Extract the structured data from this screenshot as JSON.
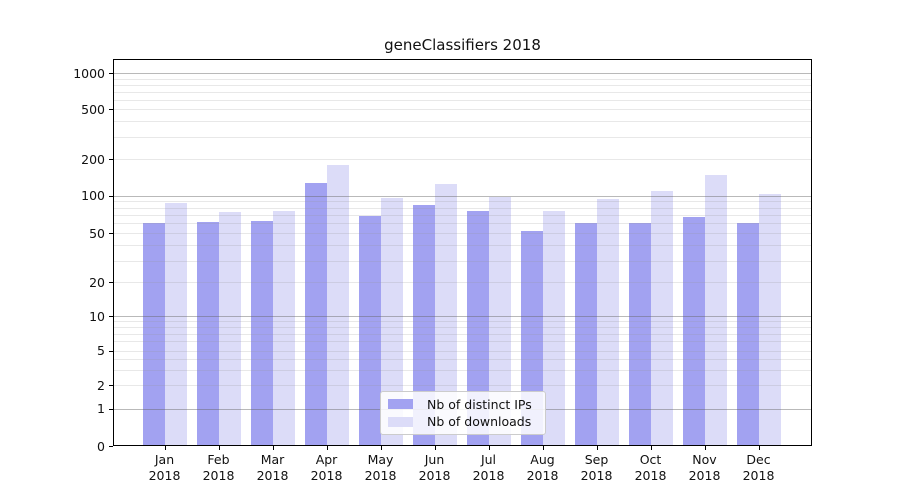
{
  "chart_data": {
    "type": "bar",
    "title": "geneClassifiers 2018",
    "categories": [
      "Jan 2018",
      "Feb 2018",
      "Mar 2018",
      "Apr 2018",
      "May 2018",
      "Jun 2018",
      "Jul 2018",
      "Aug 2018",
      "Sep 2018",
      "Oct 2018",
      "Nov 2018",
      "Dec 2018"
    ],
    "series": [
      {
        "name": "Nb of distinct IPs",
        "color": "#a2a2f1",
        "values": [
          61,
          62,
          63,
          126,
          69,
          84,
          75,
          52,
          61,
          60,
          67,
          60
        ]
      },
      {
        "name": "Nb of downloads",
        "color": "#dcdcf8",
        "values": [
          87,
          74,
          75,
          180,
          96,
          124,
          97,
          75,
          94,
          110,
          149,
          104
        ]
      }
    ],
    "xlabel": "",
    "ylabel": "",
    "yscale": "symlog",
    "yticks": [
      0,
      1,
      2,
      5,
      10,
      20,
      50,
      100,
      200,
      500,
      1000
    ],
    "ylim": [
      0,
      1300
    ],
    "grid": "both",
    "grid_major_color": "#9a9a9a",
    "grid_minor_color": "#dddddd",
    "legend_position": "lower center"
  }
}
